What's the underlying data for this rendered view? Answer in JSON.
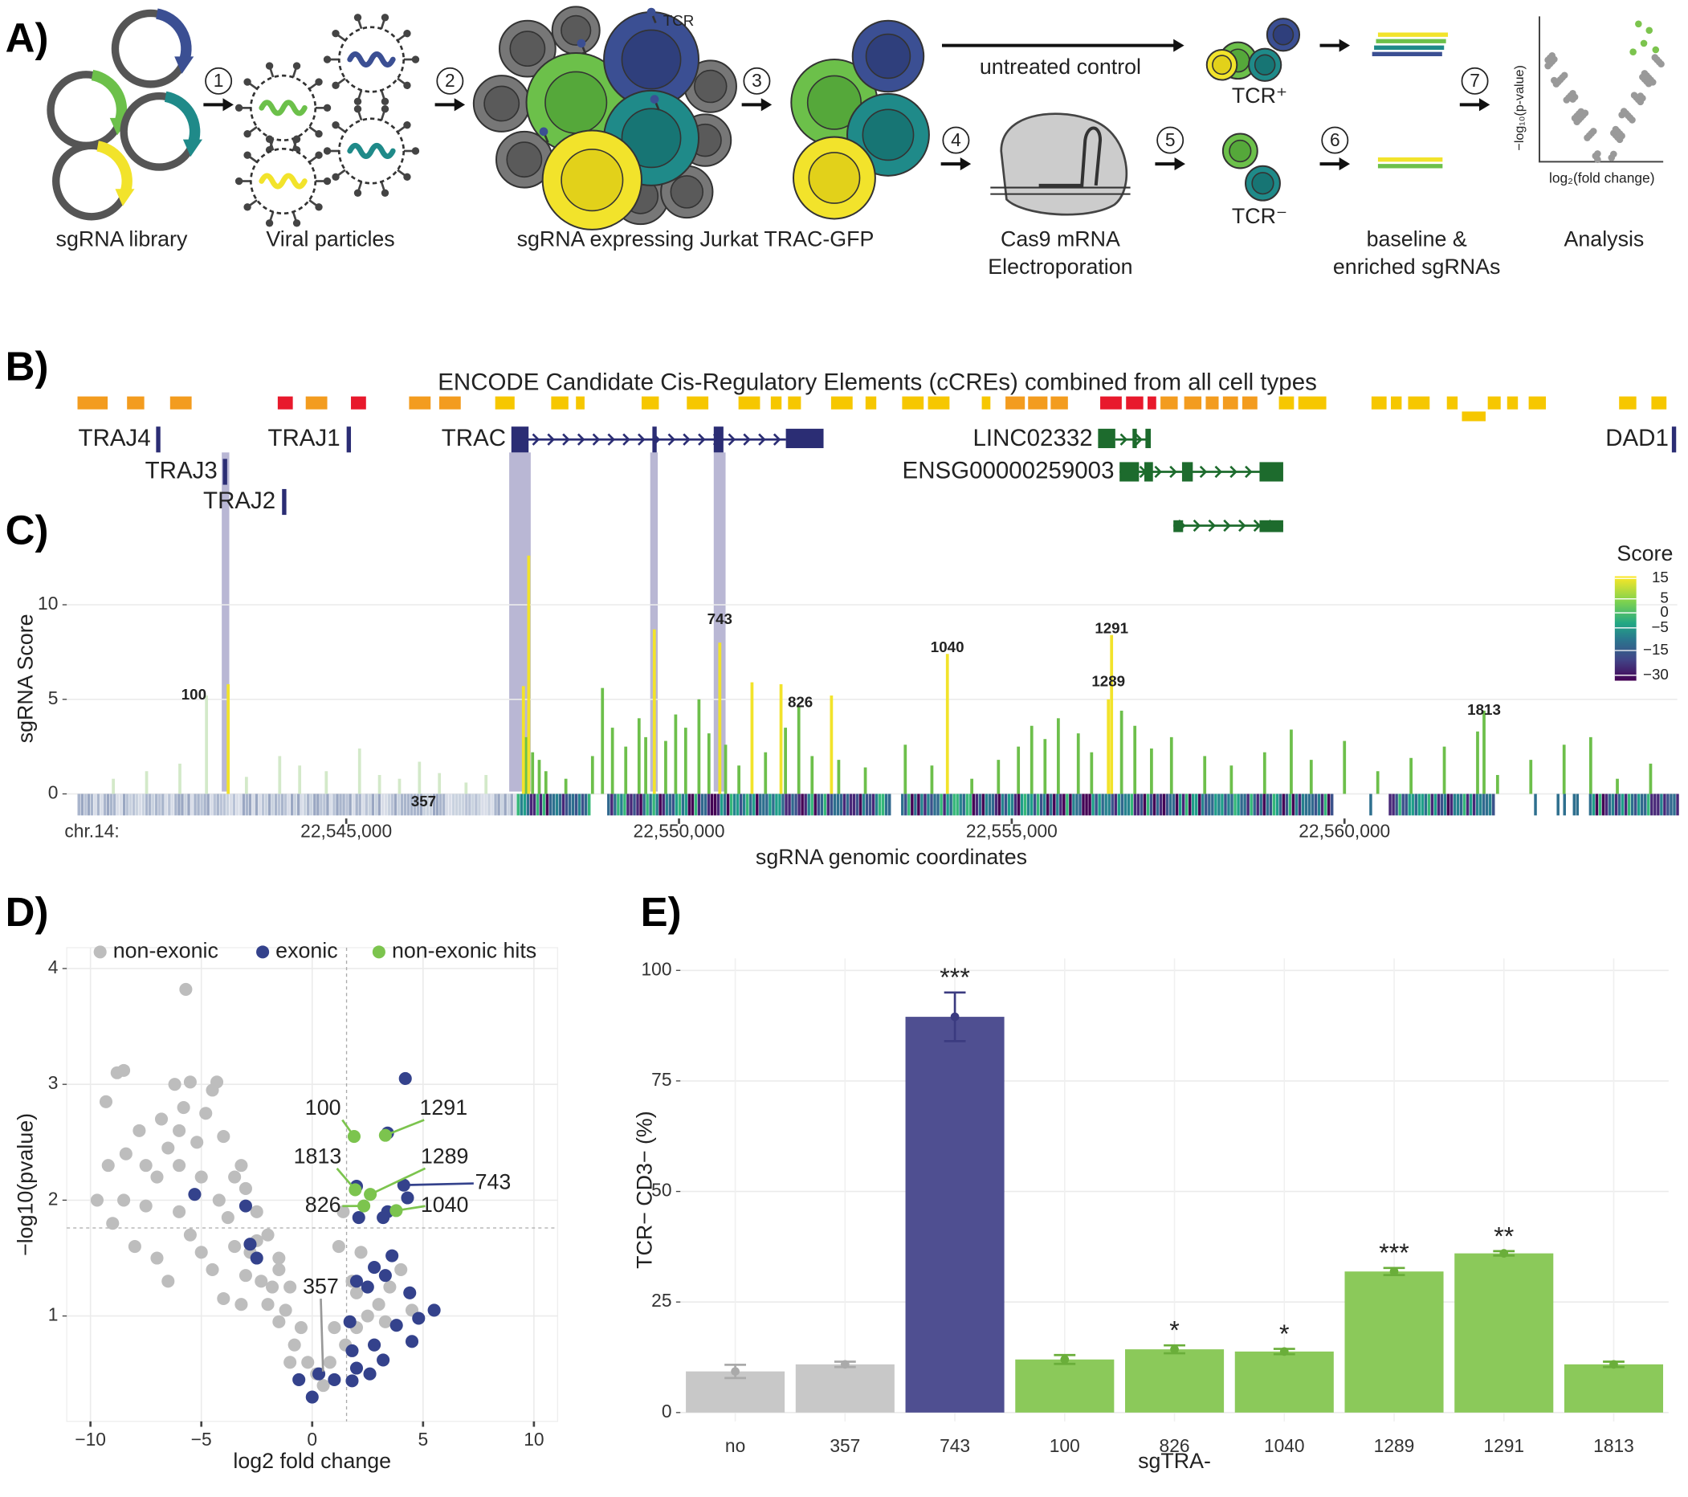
{
  "panel_labels": [
    "A)",
    "B)",
    "C)",
    "D)",
    "E)"
  ],
  "schematic": {
    "steps": [
      "1",
      "2",
      "3",
      "4",
      "5",
      "6",
      "7"
    ],
    "captions": [
      "sgRNA library",
      "Viral particles",
      "sgRNA expressing Jurkat TRAC-GFP",
      "Cas9 mRNA",
      "Electroporation",
      "baseline &",
      "enriched sgRNAs",
      "Analysis"
    ],
    "tcr": "TCR",
    "untreated": "untreated control",
    "tcr_positive": "TCR⁺",
    "tcr_negative": "TCR⁻",
    "mini_ylabel": "−log₁₀(p-value)",
    "mini_xlabel": "log₂(fold change)"
  },
  "tracks": {
    "title": "ENCODE Candidate Cis-Regulatory Elements (cCREs) combined from all cell types",
    "genes": [
      "TRAJ4",
      "TRAJ1",
      "TRAC",
      "TRAJ3",
      "TRAJ2",
      "LINC02332",
      "ENSG00000259003",
      "DAD1"
    ]
  },
  "chart_data": [
    {
      "type": "bar",
      "ylabel": "sgRNA Score",
      "xlabel": "sgRNA genomic coordinates",
      "axis_prefix": "chr.14:",
      "xlim": [
        22540800,
        22565000
      ],
      "ylim": [
        -1.3,
        13.5
      ],
      "xticks": [
        {
          "value": 22545000,
          "label": "22,545,000"
        },
        {
          "value": 22550000,
          "label": "22,550,000"
        },
        {
          "value": 22555000,
          "label": "22,555,000"
        },
        {
          "value": 22560000,
          "label": "22,560,000"
        }
      ],
      "yticks": [
        0,
        5,
        10
      ],
      "grid": true,
      "series": [
        {
          "color": "#d3e9c9",
          "x": [
            22541500,
            22542000,
            22542500,
            22542900,
            22543500,
            22544000,
            22544300,
            22544700,
            22545200,
            22545500,
            22545800,
            22546100,
            22546400,
            22546800,
            22547100
          ],
          "values": [
            0.8,
            1.2,
            1.6,
            5.2,
            0.9,
            2.0,
            1.5,
            1.2,
            2.4,
            1.0,
            0.8,
            1.7,
            1.1,
            0.6,
            1.0
          ]
        },
        {
          "color": "#6dbf4b",
          "x": [
            22547700,
            22547800,
            22547900,
            22548000,
            22548300,
            22548700,
            22548850,
            22549000,
            22549200,
            22549400,
            22549500,
            22549800,
            22549950,
            22550100,
            22550300,
            22550450,
            22550700,
            22550900,
            22551300,
            22551600,
            22551800,
            22552000,
            22552400,
            22552800,
            22553400,
            22553800,
            22554400,
            22554800,
            22555100,
            22555300,
            22555500,
            22555700,
            22556000,
            22556200,
            22556650,
            22556850,
            22557100,
            22557400,
            22557900,
            22558300,
            22558800,
            22559200,
            22559500,
            22560000,
            22560500,
            22561000,
            22561500,
            22562000,
            22562097,
            22562300,
            22562800,
            22563300,
            22563700,
            22564100,
            22564600
          ],
          "values": [
            3.0,
            2.2,
            1.8,
            1.2,
            0.8,
            2.0,
            5.6,
            3.5,
            2.5,
            4.0,
            3.0,
            2.8,
            4.2,
            3.5,
            5.0,
            3.2,
            2.6,
            1.5,
            2.2,
            3.5,
            4.6,
            2.0,
            1.8,
            1.4,
            2.6,
            1.5,
            0.8,
            1.8,
            2.5,
            3.6,
            2.9,
            4.0,
            3.2,
            2.2,
            4.4,
            3.6,
            2.4,
            3.0,
            2.0,
            1.5,
            2.2,
            3.4,
            1.8,
            2.8,
            1.2,
            1.9,
            2.5,
            3.3,
            4.4,
            1.0,
            1.8,
            2.6,
            3.0,
            0.8,
            1.6
          ]
        },
        {
          "color": "#f2e32b",
          "x": [
            22543226,
            22547662,
            22547742,
            22549629,
            22550613,
            22551097,
            22551533,
            22552291,
            22554033,
            22556452,
            22556500
          ],
          "values": [
            5.8,
            5.7,
            12.6,
            8.7,
            8.0,
            5.9,
            5.8,
            5.2,
            7.4,
            5.0,
            8.4
          ]
        }
      ],
      "legend_title": "Score",
      "colorbar_ticks": [
        15,
        5,
        0,
        {
          "value": -5,
          "label": "−5"
        },
        {
          "value": -15,
          "label": "−15"
        },
        {
          "value": -30,
          "label": "−30"
        }
      ],
      "annotations": [
        {
          "label": "100",
          "x": 22542710,
          "y": 5.2
        },
        {
          "label": "743",
          "x": 22550613,
          "y": 9.2
        },
        {
          "label": "826",
          "x": 22551823,
          "y": 4.8
        },
        {
          "label": "1040",
          "x": 22554032,
          "y": 7.7
        },
        {
          "label": "1291",
          "x": 22556500,
          "y": 8.7
        },
        {
          "label": "1289",
          "x": 22556452,
          "y": 5.9
        },
        {
          "label": "1813",
          "x": 22562097,
          "y": 4.4
        },
        {
          "label": "357",
          "x": 22546162,
          "y": -0.45
        }
      ]
    },
    {
      "type": "scatter",
      "xlabel": "log2 fold change",
      "ylabel": "−log10(pvalue)",
      "xlim": [
        -11.07,
        11.07
      ],
      "ylim": [
        0.09,
        4.18
      ],
      "xticks": [
        {
          "value": -10,
          "label": "−10"
        },
        {
          "value": -5,
          "label": "−5"
        },
        0,
        5,
        10
      ],
      "yticks": [
        1,
        2,
        3,
        4
      ],
      "grid": true,
      "thresholds": {
        "x": 1.55,
        "y": 1.76
      },
      "series": [
        {
          "name": "non-exonic",
          "color": "#bdbdbd",
          "x": [
            -5.7,
            -9.3,
            -8.8,
            -8.5,
            -6.2,
            -5.5,
            -4.5,
            -4.8,
            -6.8,
            -7.8,
            -8.4,
            -9.2,
            -9.7,
            -9.0,
            -8.0,
            -7.5,
            -7.0,
            -6.5,
            -6.0,
            -5.2,
            -4.0,
            -3.5,
            -3.0,
            -2.5,
            -2.0,
            -1.5,
            -1.0,
            -0.5,
            -0.2,
            0.2,
            0.8,
            1.5,
            2.0,
            2.5,
            3.0,
            3.5,
            4.0,
            4.5,
            1.0,
            1.8,
            2.2,
            1.2,
            1.4,
            -5.5,
            -6.5,
            -4.5,
            -3.5,
            -3.0,
            -2.0,
            -1.5,
            -4.2,
            -5.0,
            -3.8,
            -2.8,
            -2.3,
            -1.8,
            -1.2,
            -0.8,
            -7.0,
            -8.5,
            -6.0,
            -5.0,
            -1.0,
            0.5,
            2.8,
            3.3,
            2.0,
            -3.2,
            -4.0,
            -6.0,
            -2.5,
            -1.5,
            -7.5,
            -5.8,
            -4.3,
            -3.2
          ],
          "values": [
            3.82,
            2.85,
            3.1,
            3.12,
            3.0,
            3.02,
            2.95,
            2.75,
            2.7,
            2.6,
            2.4,
            2.3,
            2.0,
            1.8,
            1.6,
            1.95,
            2.2,
            2.45,
            2.6,
            2.5,
            2.55,
            2.2,
            2.1,
            1.9,
            1.7,
            1.5,
            1.25,
            0.9,
            0.6,
            0.5,
            0.6,
            0.75,
            0.9,
            1.0,
            1.1,
            1.25,
            1.4,
            1.05,
            0.9,
            1.3,
            1.55,
            1.6,
            1.9,
            1.7,
            1.3,
            1.4,
            1.6,
            1.35,
            1.1,
            0.95,
            2.0,
            2.2,
            1.85,
            1.55,
            1.3,
            1.25,
            1.05,
            0.75,
            1.5,
            2.0,
            1.9,
            1.55,
            0.6,
            0.4,
            0.75,
            0.95,
            1.2,
            1.1,
            1.15,
            2.3,
            1.65,
            1.4,
            2.3,
            2.8,
            3.02,
            2.3
          ]
        },
        {
          "name": "exonic",
          "color": "#34428c",
          "x": [
            4.2,
            3.4,
            4.13,
            4.3,
            3.4,
            3.2,
            2.1,
            2.0,
            -5.3,
            -3.0,
            -2.8,
            -2.5,
            3.6,
            2.8,
            3.3,
            2.0,
            2.5,
            4.4,
            5.5,
            4.8,
            3.8,
            1.7,
            1.8,
            2.8,
            4.5,
            2.0,
            2.6,
            1.8,
            0.3,
            0.0,
            -0.6,
            3.2,
            1.0
          ],
          "values": [
            3.05,
            2.58,
            2.13,
            2.02,
            1.9,
            1.85,
            1.85,
            2.12,
            2.05,
            1.95,
            1.62,
            1.5,
            1.52,
            1.42,
            1.35,
            1.3,
            1.25,
            1.2,
            1.05,
            0.98,
            0.92,
            0.95,
            0.7,
            0.75,
            0.78,
            0.55,
            0.5,
            0.44,
            0.5,
            0.3,
            0.45,
            0.62,
            0.45
          ]
        },
        {
          "name": "non-exonic hits",
          "color": "#7cc44e",
          "x": [
            1.89,
            3.3,
            1.94,
            2.62,
            2.33,
            3.79
          ],
          "values": [
            2.55,
            2.56,
            2.09,
            2.05,
            1.95,
            1.91
          ]
        }
      ],
      "annotations": [
        {
          "label": "100",
          "x": 1.89,
          "y": 2.55
        },
        {
          "label": "1291",
          "x": 3.3,
          "y": 2.56
        },
        {
          "label": "1813",
          "x": 1.94,
          "y": 2.09
        },
        {
          "label": "1289",
          "x": 2.62,
          "y": 2.05
        },
        {
          "label": "743",
          "x": 4.13,
          "y": 2.13
        },
        {
          "label": "826",
          "x": 2.33,
          "y": 1.95
        },
        {
          "label": "1040",
          "x": 3.79,
          "y": 1.91
        },
        {
          "label": "357",
          "x": 0.49,
          "y": 0.52
        }
      ]
    },
    {
      "type": "bar",
      "xlabel": "sgTRA-",
      "ylabel": "TCR− CD3− (%)",
      "categories": [
        "no",
        "357",
        "743",
        "100",
        "826",
        "1040",
        "1289",
        "1291",
        "1813"
      ],
      "values": [
        9.3,
        10.9,
        89.5,
        12.0,
        14.3,
        13.8,
        31.9,
        36.0,
        10.9
      ],
      "errors": [
        1.5,
        0.6,
        5.5,
        1.0,
        0.9,
        0.6,
        0.8,
        0.5,
        0.6
      ],
      "colors": [
        "#c8c8c8",
        "#c8c8c8",
        "#4f4f91",
        "#8bc95a",
        "#8bc95a",
        "#8bc95a",
        "#8bc95a",
        "#8bc95a",
        "#8bc95a"
      ],
      "ylim": [
        -2,
        102.7
      ],
      "yticks": [
        0,
        25,
        50,
        75,
        100
      ],
      "grid": true,
      "annotations": [
        {
          "x": "743",
          "label": "***"
        },
        {
          "x": "826",
          "label": "*"
        },
        {
          "x": "1040",
          "label": "*"
        },
        {
          "x": "1289",
          "label": "***"
        },
        {
          "x": "1291",
          "label": "**"
        }
      ]
    }
  ]
}
